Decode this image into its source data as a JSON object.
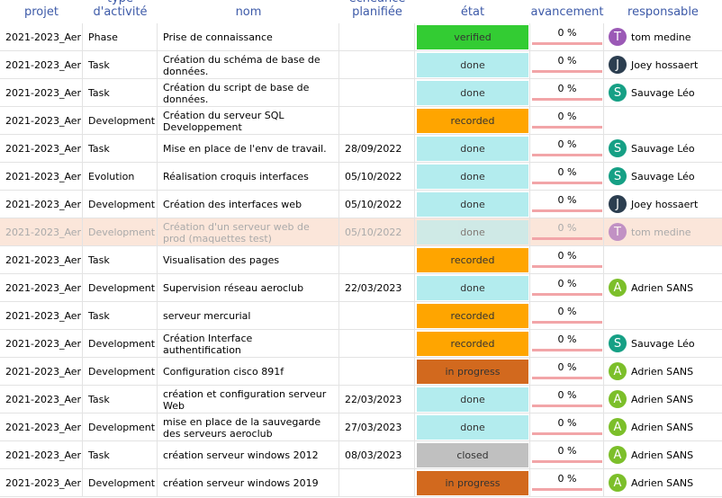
{
  "header": {
    "columns": [
      "projet",
      "type d'activité",
      "nom",
      "échéance planifiée",
      "état",
      "avancement",
      "responsable"
    ]
  },
  "table": {
    "rows": [
      {
        "projet": "2021-2023_Aer",
        "type": "Phase",
        "nom": "Prise de connaissance",
        "etat": "verified",
        "avancement": "0 %",
        "responsable": {
          "initial": "T",
          "name": "tom medine",
          "color": "#9b59b6"
        }
      },
      {
        "projet": "2021-2023_Aer",
        "type": "Task",
        "nom": "Création du schéma de base de données.",
        "etat": "done",
        "avancement": "0 %",
        "responsable": {
          "initial": "J",
          "name": "Joey hossaert",
          "color": "#2c3e50"
        }
      },
      {
        "projet": "2021-2023_Aer",
        "type": "Task",
        "nom": "Création du script de base de données.",
        "etat": "done",
        "avancement": "0 %",
        "responsable": {
          "initial": "S",
          "name": "Sauvage Léo",
          "color": "#16a085"
        }
      },
      {
        "projet": "2021-2023_Aer",
        "type": "Development",
        "nom": "Création du serveur SQL Developpement",
        "etat": "recorded",
        "avancement": "0 %"
      },
      {
        "projet": "2021-2023_Aer",
        "type": "Task",
        "nom": "Mise en place de l'env de travail.",
        "echeance": "28/09/2022",
        "etat": "done",
        "avancement": "0 %",
        "responsable": {
          "initial": "S",
          "name": "Sauvage Léo",
          "color": "#16a085"
        }
      },
      {
        "projet": "2021-2023_Aer",
        "type": "Evolution",
        "nom": "Réalisation croquis interfaces",
        "echeance": "05/10/2022",
        "etat": "done",
        "avancement": "0 %",
        "responsable": {
          "initial": "S",
          "name": "Sauvage Léo",
          "color": "#16a085"
        }
      },
      {
        "projet": "2021-2023_Aer",
        "type": "Development",
        "nom": "Création des interfaces web",
        "echeance": "05/10/2022",
        "etat": "done",
        "avancement": "0 %",
        "responsable": {
          "initial": "J",
          "name": "Joey hossaert",
          "color": "#2c3e50"
        }
      },
      {
        "projet": "2021-2023_Aer",
        "type": "Development",
        "nom": "Création d'un serveur web de prod (maquettes test)",
        "echeance": "05/10/2022",
        "etat": "done",
        "avancement": "0 %",
        "responsable": {
          "initial": "T",
          "name": "tom medine",
          "color": "#9b59b6"
        },
        "selected": true
      },
      {
        "projet": "2021-2023_Aer",
        "type": "Task",
        "nom": "Visualisation des pages",
        "etat": "recorded",
        "avancement": "0 %"
      },
      {
        "projet": "2021-2023_Aer",
        "type": "Development",
        "nom": "Supervision réseau aeroclub",
        "echeance": "22/03/2023",
        "etat": "done",
        "avancement": "0 %",
        "responsable": {
          "initial": "A",
          "name": "Adrien SANS",
          "color": "#7cbf2a"
        }
      },
      {
        "projet": "2021-2023_Aer",
        "type": "Task",
        "nom": "serveur mercurial",
        "etat": "recorded",
        "avancement": "0 %"
      },
      {
        "projet": "2021-2023_Aer",
        "type": "Development",
        "nom": "Création Interface authentification",
        "etat": "recorded",
        "avancement": "0 %",
        "responsable": {
          "initial": "S",
          "name": "Sauvage Léo",
          "color": "#16a085"
        }
      },
      {
        "projet": "2021-2023_Aer",
        "type": "Development",
        "nom": "Configuration cisco 891f",
        "etat": "in progress",
        "avancement": "0 %",
        "responsable": {
          "initial": "A",
          "name": "Adrien SANS",
          "color": "#7cbf2a"
        }
      },
      {
        "projet": "2021-2023_Aer",
        "type": "Task",
        "nom": "création et configuration serveur Web",
        "echeance": "22/03/2023",
        "etat": "done",
        "avancement": "0 %",
        "responsable": {
          "initial": "A",
          "name": "Adrien SANS",
          "color": "#7cbf2a"
        }
      },
      {
        "projet": "2021-2023_Aer",
        "type": "Development",
        "nom": "mise en place de la sauvegarde des serveurs aeroclub",
        "echeance": "27/03/2023",
        "etat": "done",
        "avancement": "0 %",
        "responsable": {
          "initial": "A",
          "name": "Adrien SANS",
          "color": "#7cbf2a"
        }
      },
      {
        "projet": "2021-2023_Aer",
        "type": "Task",
        "nom": "création serveur windows 2012",
        "echeance": "08/03/2023",
        "etat": "closed",
        "avancement": "0 %",
        "responsable": {
          "initial": "A",
          "name": "Adrien SANS",
          "color": "#7cbf2a"
        }
      },
      {
        "projet": "2021-2023_Aer",
        "type": "Development",
        "nom": "création serveur windows 2019",
        "etat": "in progress",
        "avancement": "0 %",
        "responsable": {
          "initial": "A",
          "name": "Adrien SANS",
          "color": "#7cbf2a"
        }
      }
    ]
  }
}
